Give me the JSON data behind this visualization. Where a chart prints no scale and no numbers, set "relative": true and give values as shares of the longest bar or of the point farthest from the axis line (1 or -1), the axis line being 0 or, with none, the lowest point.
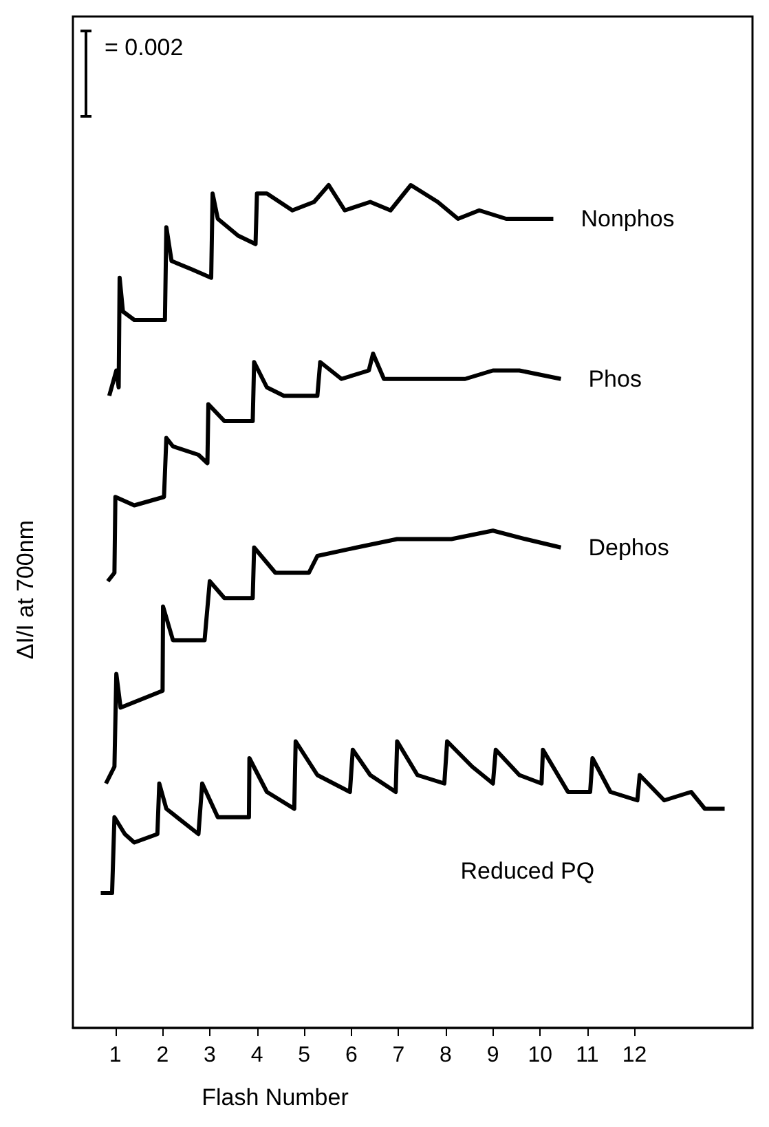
{
  "chart_data": {
    "type": "line",
    "relative": true,
    "xlabel": "Flash Number",
    "ylabel": "ΔI/I at 700nm",
    "annotations": [
      "= 0.002"
    ],
    "xlim": [
      0.1,
      14.5
    ],
    "xticks": [
      1,
      2,
      3,
      4,
      5,
      6,
      7,
      8,
      9,
      10,
      11,
      12
    ],
    "grid": false,
    "legend": false,
    "marker": "none",
    "line_style": "solid",
    "series": [
      {
        "name": "Nonphos",
        "color": "#000000",
        "x": [
          0.87,
          1.02,
          1.07,
          1.09,
          1.16,
          1.4,
          2.05,
          2.08,
          2.19,
          2.62,
          3.03,
          3.06,
          3.17,
          3.6,
          3.97,
          4.0,
          4.21,
          4.75,
          5.21,
          5.52,
          5.86,
          6.4,
          6.83,
          7.26,
          7.83,
          8.26,
          8.71,
          9.28,
          9.83,
          10.28
        ],
        "values": [
          0.75,
          0.78,
          0.76,
          0.89,
          0.85,
          0.84,
          0.84,
          0.95,
          0.91,
          0.9,
          0.89,
          0.99,
          0.96,
          0.94,
          0.93,
          0.99,
          0.99,
          0.97,
          0.98,
          1.0,
          0.97,
          0.98,
          0.97,
          1.0,
          0.98,
          0.96,
          0.97,
          0.96,
          0.96,
          0.96
        ]
      },
      {
        "name": "Phos",
        "color": "#000000",
        "x": [
          0.84,
          0.98,
          1.0,
          1.4,
          2.03,
          2.08,
          2.22,
          2.76,
          2.95,
          2.97,
          3.31,
          3.91,
          3.94,
          4.21,
          4.57,
          5.28,
          5.34,
          5.79,
          6.37,
          6.46,
          6.69,
          7.54,
          8.41,
          9.0,
          9.56,
          10.44
        ],
        "values": [
          0.53,
          0.54,
          0.63,
          0.62,
          0.63,
          0.7,
          0.69,
          0.68,
          0.67,
          0.74,
          0.72,
          0.72,
          0.79,
          0.76,
          0.75,
          0.75,
          0.79,
          0.77,
          0.78,
          0.8,
          0.77,
          0.77,
          0.77,
          0.78,
          0.78,
          0.77
        ]
      },
      {
        "name": "Dephos",
        "color": "#000000",
        "x": [
          0.8,
          0.98,
          1.02,
          1.11,
          2.0,
          2.01,
          2.22,
          2.89,
          3.0,
          3.31,
          3.91,
          3.94,
          4.39,
          5.1,
          5.28,
          6.11,
          6.97,
          8.12,
          9.0,
          9.69,
          10.44
        ],
        "values": [
          0.29,
          0.31,
          0.42,
          0.38,
          0.4,
          0.5,
          0.46,
          0.46,
          0.53,
          0.51,
          0.51,
          0.57,
          0.54,
          0.54,
          0.56,
          0.57,
          0.58,
          0.58,
          0.59,
          0.58,
          0.57
        ]
      },
      {
        "name": "Reduced PQ",
        "color": "#000000",
        "x": [
          0.69,
          0.93,
          0.98,
          1.2,
          1.4,
          1.89,
          1.93,
          2.08,
          2.76,
          2.84,
          3.17,
          3.83,
          3.84,
          4.21,
          4.79,
          4.82,
          5.28,
          5.97,
          6.03,
          6.4,
          6.94,
          6.97,
          7.4,
          7.97,
          8.03,
          8.56,
          9.0,
          9.06,
          9.56,
          10.03,
          10.06,
          10.59,
          11.06,
          11.11,
          11.49,
          12.06,
          12.11,
          12.63,
          13.2,
          13.49,
          13.91
        ],
        "values": [
          0.16,
          0.16,
          0.25,
          0.23,
          0.22,
          0.23,
          0.29,
          0.26,
          0.23,
          0.29,
          0.25,
          0.25,
          0.32,
          0.28,
          0.26,
          0.34,
          0.3,
          0.28,
          0.33,
          0.3,
          0.28,
          0.34,
          0.3,
          0.29,
          0.34,
          0.31,
          0.29,
          0.33,
          0.3,
          0.29,
          0.33,
          0.28,
          0.28,
          0.32,
          0.28,
          0.27,
          0.3,
          0.27,
          0.28,
          0.26,
          0.26
        ]
      }
    ]
  }
}
